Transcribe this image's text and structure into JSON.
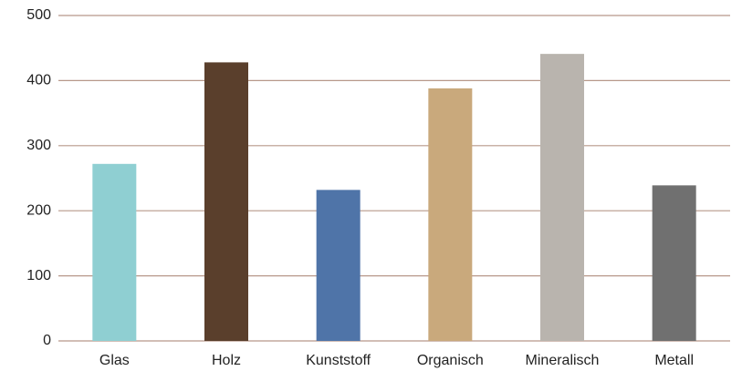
{
  "chart_data": {
    "type": "bar",
    "categories": [
      "Glas",
      "Holz",
      "Kunststoff",
      "Organisch",
      "Mineralisch",
      "Metall"
    ],
    "values": [
      272,
      428,
      232,
      388,
      441,
      239
    ],
    "colors": [
      "#8fcfd2",
      "#5a3f2c",
      "#4f74a8",
      "#c9a97c",
      "#b9b4ae",
      "#707070"
    ],
    "ylim": [
      0,
      500
    ],
    "yticks": [
      0,
      100,
      200,
      300,
      400,
      500
    ],
    "grid": true
  }
}
